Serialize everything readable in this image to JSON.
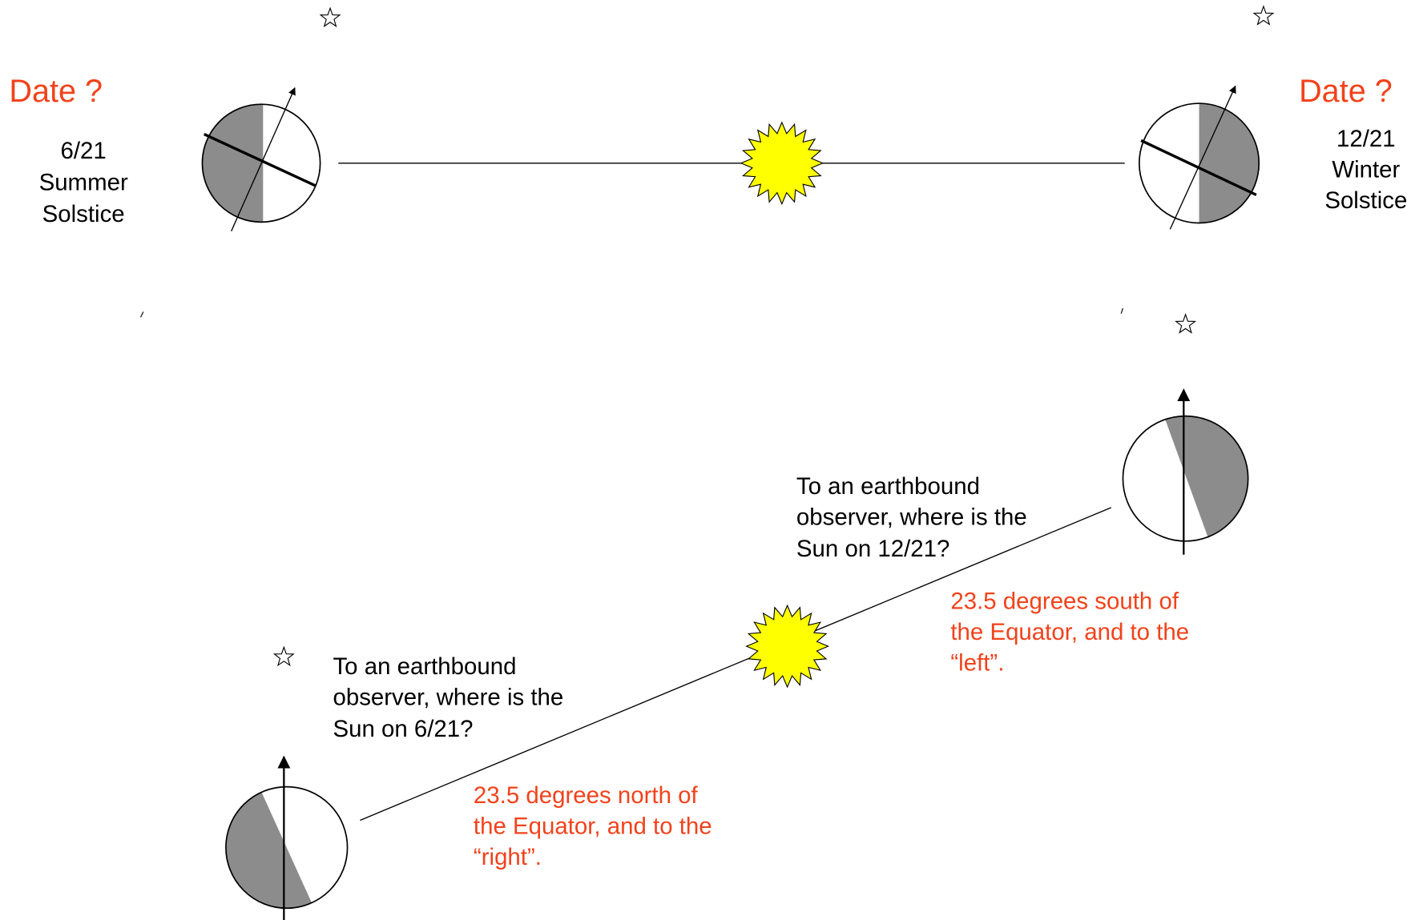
{
  "top": {
    "left": {
      "heading": "Date ?",
      "lines": [
        "6/21",
        "Summer",
        "Solstice"
      ]
    },
    "right": {
      "heading": "Date ?",
      "lines": [
        "12/21",
        "Winter",
        "Solstice"
      ]
    }
  },
  "bottom": {
    "right": {
      "question": [
        "To an earthbound",
        "observer, where is the",
        "Sun on 12/21?"
      ],
      "answer": [
        "23.5 degrees south of",
        "the Equator, and to the",
        "“left”."
      ]
    },
    "left": {
      "question": [
        "To an earthbound",
        "observer, where is the",
        "Sun on 6/21?"
      ],
      "answer": [
        "23.5 degrees north of",
        "the Equator, and to the",
        "“right”."
      ]
    }
  }
}
